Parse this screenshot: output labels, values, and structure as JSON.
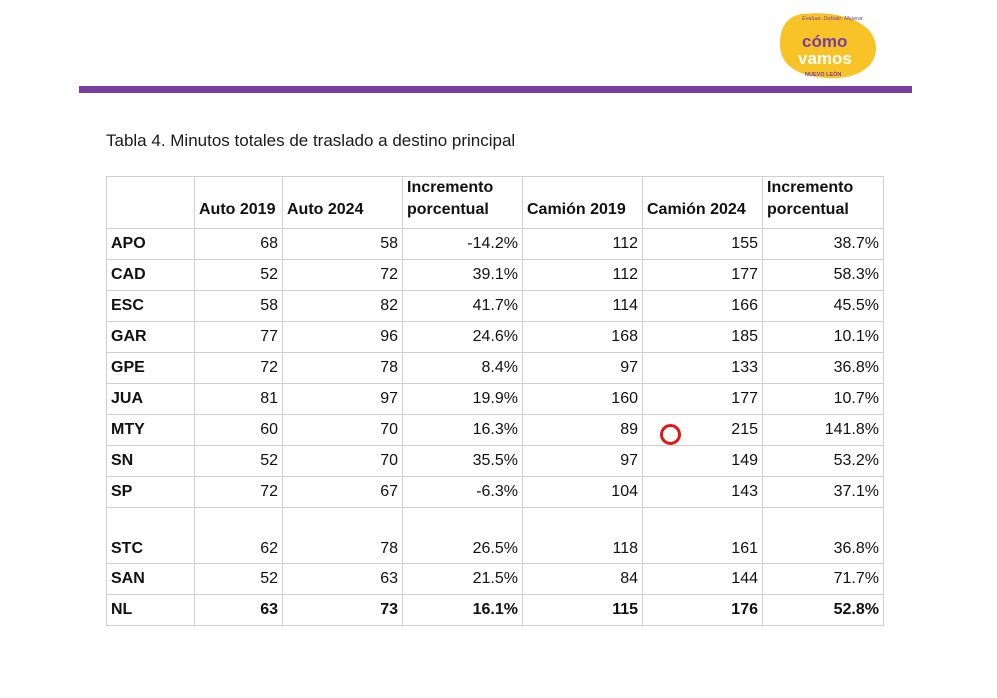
{
  "logo": {
    "tagline": "Evaluar. Debatir. Mejorar.",
    "line1": "cómo",
    "line2": "vamos",
    "region": "NUEVO LEÓN",
    "colors": {
      "yellow": "#f7c326",
      "purple": "#7a3ea1",
      "white": "#ffffff"
    }
  },
  "accent_color": "#7a3ea1",
  "title": "Tabla 4. Minutos totales de traslado a destino principal",
  "table": {
    "headers": [
      "",
      "Auto 2019",
      "Auto 2024",
      "Incremento porcentual",
      "Camión 2019",
      "Camión 2024",
      "Incremento porcentual"
    ],
    "rows": [
      [
        "APO",
        "68",
        "58",
        "-14.2%",
        "112",
        "155",
        "38.7%"
      ],
      [
        "CAD",
        "52",
        "72",
        "39.1%",
        "112",
        "177",
        "58.3%"
      ],
      [
        "ESC",
        "58",
        "82",
        "41.7%",
        "114",
        "166",
        "45.5%"
      ],
      [
        "GAR",
        "77",
        "96",
        "24.6%",
        "168",
        "185",
        "10.1%"
      ],
      [
        "GPE",
        "72",
        "78",
        "8.4%",
        "97",
        "133",
        "36.8%"
      ],
      [
        "JUA",
        "81",
        "97",
        "19.9%",
        "160",
        "177",
        "10.7%"
      ],
      [
        "MTY",
        "60",
        "70",
        "16.3%",
        "89",
        "215",
        "141.8%"
      ],
      [
        "SN",
        "52",
        "70",
        "35.5%",
        "97",
        "149",
        "53.2%"
      ],
      [
        "SP",
        "72",
        "67",
        "-6.3%",
        "104",
        "143",
        "37.1%"
      ],
      [
        "STC",
        "62",
        "78",
        "26.5%",
        "118",
        "161",
        "36.8%"
      ],
      [
        "SAN",
        "52",
        "63",
        "21.5%",
        "84",
        "144",
        "71.7%"
      ],
      [
        "NL",
        "63",
        "73",
        "16.1%",
        "115",
        "176",
        "52.8%"
      ]
    ]
  },
  "annotation": {
    "shape": "circle",
    "color": "#e01818",
    "note_target": "MTY Camión 2024"
  }
}
